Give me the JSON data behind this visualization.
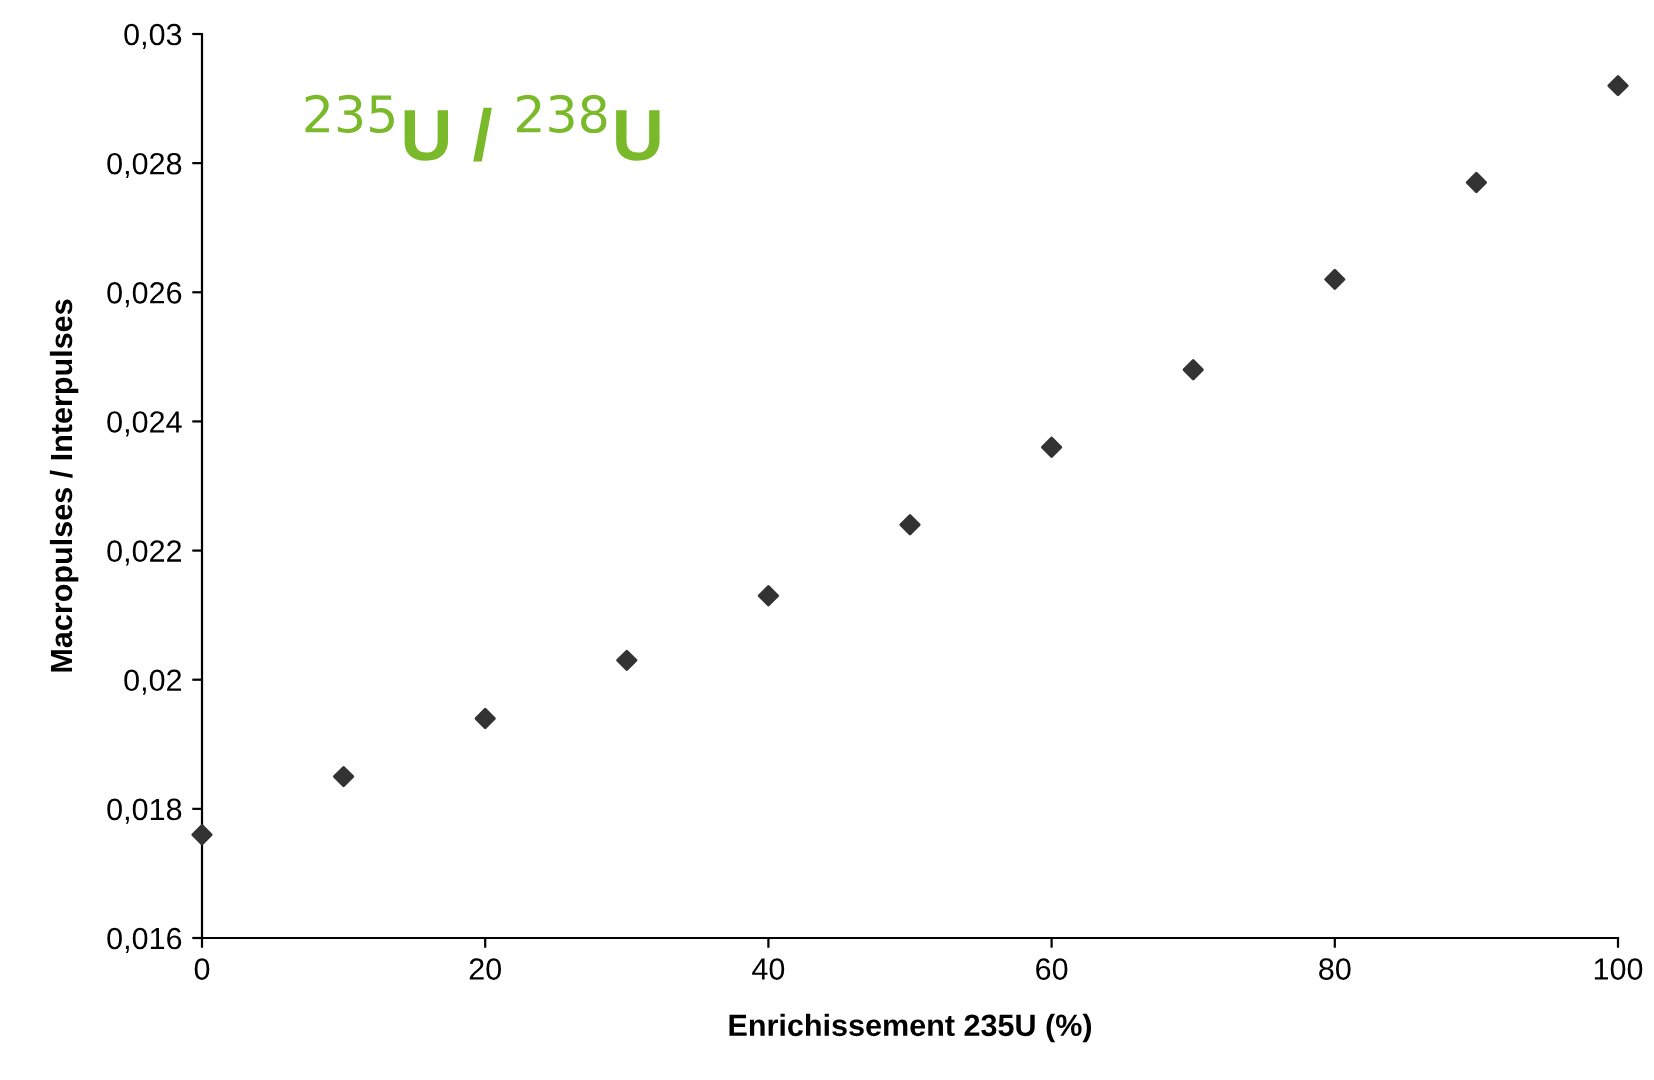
{
  "chart_data": {
    "type": "scatter",
    "xlabel": "Enrichissement 235U (%)",
    "ylabel": "Macropulses / Interpulses",
    "annotations": [
      "$^{235}$U / $^{238}$U"
    ],
    "x": [
      0,
      10,
      20,
      30,
      40,
      50,
      60,
      70,
      80,
      90,
      100
    ],
    "series": [
      {
        "color": "#333333",
        "values": [
          0.0176,
          0.0185,
          0.0194,
          0.0203,
          0.0213,
          0.0224,
          0.0236,
          0.0248,
          0.0262,
          0.0277,
          0.0292
        ]
      }
    ],
    "marker": "diamond",
    "grid": false,
    "legend": false,
    "xlim": [
      0,
      100
    ],
    "xticks": [
      0,
      20,
      40,
      60,
      80,
      100
    ],
    "ylim": [
      0.016,
      0.03
    ],
    "yticks": [
      {
        "value": 0.016,
        "label": "0,016"
      },
      {
        "value": 0.018,
        "label": "0,018"
      },
      {
        "value": 0.02,
        "label": "0,02"
      },
      {
        "value": 0.022,
        "label": "0,022"
      },
      {
        "value": 0.024,
        "label": "0,024"
      },
      {
        "value": 0.026,
        "label": "0,026"
      },
      {
        "value": 0.028,
        "label": "0,028"
      },
      {
        "value": 0.03,
        "label": "0,03"
      }
    ]
  }
}
